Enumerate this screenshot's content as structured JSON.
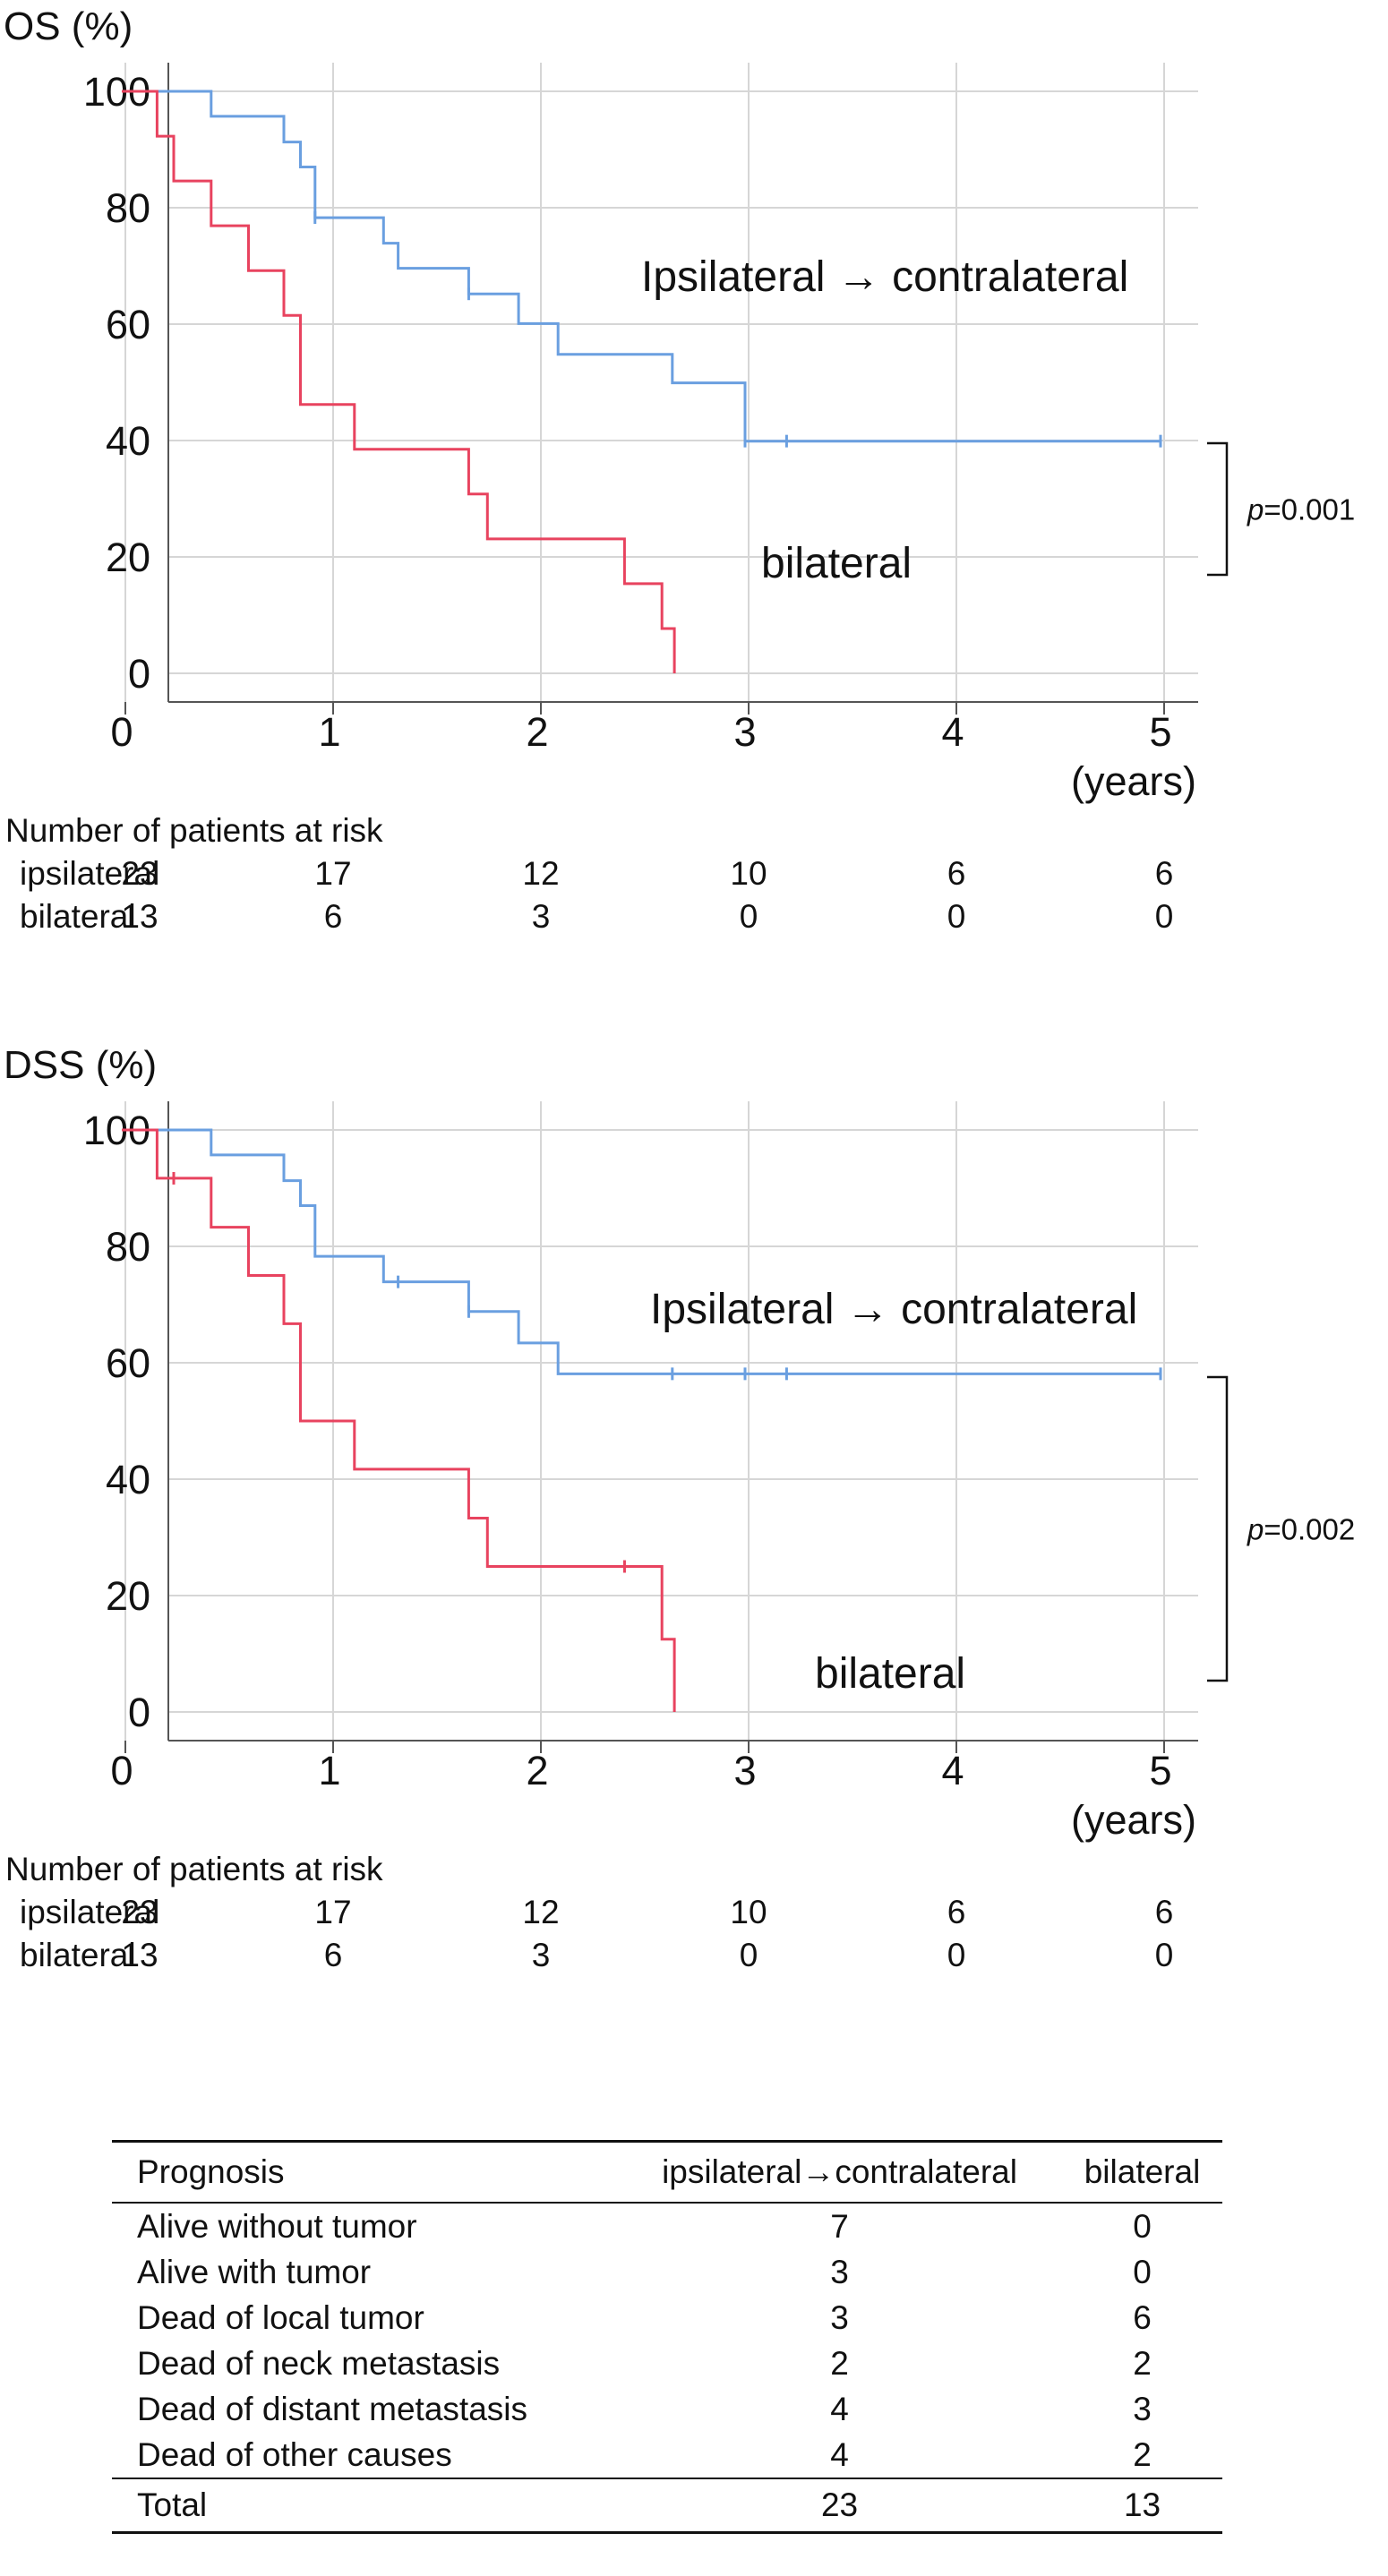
{
  "chart_data": [
    {
      "type": "line",
      "subtype": "kaplan-meier",
      "id": "os",
      "ylabel": "OS (%)",
      "xlabel": "(years)",
      "xlim": [
        0,
        5
      ],
      "ylim": [
        0,
        100
      ],
      "xticks": [
        "0",
        "1",
        "2",
        "3",
        "4",
        "5"
      ],
      "yticks": [
        "0",
        "20",
        "40",
        "60",
        "80",
        "100"
      ],
      "grid": true,
      "series": [
        {
          "name": "Ipsilateral → contralateral",
          "color": "#6a9fe0",
          "steps": [
            [
              0,
              100
            ],
            [
              0.43,
              95.7
            ],
            [
              0.78,
              91.3
            ],
            [
              0.86,
              87
            ],
            [
              0.93,
              78.3
            ],
            [
              1.26,
              73.9
            ],
            [
              1.33,
              69.6
            ],
            [
              1.67,
              65.2
            ],
            [
              1.91,
              60.1
            ],
            [
              2.1,
              54.8
            ],
            [
              2.65,
              49.9
            ],
            [
              3.0,
              39.9
            ],
            [
              5.0,
              39.9
            ]
          ],
          "censored": [
            [
              0.93,
              78.3
            ],
            [
              1.67,
              65.2
            ],
            [
              3.0,
              39.9
            ],
            [
              3.2,
              39.9
            ],
            [
              5.0,
              39.9
            ]
          ]
        },
        {
          "name": "bilateral",
          "color": "#e8435f",
          "steps": [
            [
              0,
              100
            ],
            [
              0.17,
              92.3
            ],
            [
              0.25,
              84.6
            ],
            [
              0.43,
              76.9
            ],
            [
              0.61,
              69.2
            ],
            [
              0.78,
              61.5
            ],
            [
              0.86,
              46.2
            ],
            [
              1.12,
              38.5
            ],
            [
              1.67,
              30.8
            ],
            [
              1.76,
              23.1
            ],
            [
              2.42,
              15.4
            ],
            [
              2.6,
              7.7
            ],
            [
              2.66,
              0
            ]
          ],
          "censored": []
        }
      ],
      "p_value": "p=0.001",
      "risk_table": {
        "header": "Number  of  patients at risk",
        "rows": [
          {
            "label": "ipsilateral",
            "values": [
              "23",
              "17",
              "12",
              "10",
              "6",
              "6"
            ]
          },
          {
            "label": "bilateral",
            "values": [
              "13",
              "6",
              "3",
              "0",
              "0",
              "0"
            ]
          }
        ]
      }
    },
    {
      "type": "line",
      "subtype": "kaplan-meier",
      "id": "dss",
      "ylabel": "DSS (%)",
      "xlabel": "(years)",
      "xlim": [
        0,
        5
      ],
      "ylim": [
        0,
        100
      ],
      "xticks": [
        "0",
        "1",
        "2",
        "3",
        "4",
        "5"
      ],
      "yticks": [
        "0",
        "20",
        "40",
        "60",
        "80",
        "100"
      ],
      "grid": true,
      "series": [
        {
          "name": "Ipsilateral → contralateral",
          "color": "#6a9fe0",
          "steps": [
            [
              0,
              100
            ],
            [
              0.43,
              95.7
            ],
            [
              0.78,
              91.3
            ],
            [
              0.86,
              87
            ],
            [
              0.93,
              78.3
            ],
            [
              1.26,
              73.9
            ],
            [
              1.67,
              68.8
            ],
            [
              1.91,
              63.4
            ],
            [
              2.1,
              58.1
            ],
            [
              5.0,
              58.1
            ]
          ],
          "censored": [
            [
              1.33,
              73.9
            ],
            [
              1.67,
              68.8
            ],
            [
              2.65,
              58.1
            ],
            [
              3.0,
              58.1
            ],
            [
              3.2,
              58.1
            ],
            [
              5.0,
              58.1
            ]
          ]
        },
        {
          "name": "bilateral",
          "color": "#e8435f",
          "steps": [
            [
              0,
              100
            ],
            [
              0.17,
              91.7
            ],
            [
              0.43,
              83.3
            ],
            [
              0.61,
              75
            ],
            [
              0.78,
              66.7
            ],
            [
              0.86,
              50
            ],
            [
              1.12,
              41.7
            ],
            [
              1.67,
              33.3
            ],
            [
              1.76,
              25
            ],
            [
              2.6,
              12.5
            ],
            [
              2.66,
              0
            ]
          ],
          "censored": [
            [
              0.25,
              91.7
            ],
            [
              2.42,
              25
            ]
          ]
        }
      ],
      "p_value": "p=0.002",
      "risk_table": {
        "header": "Number  of  patients at risk",
        "rows": [
          {
            "label": "ipsilateral",
            "values": [
              "23",
              "17",
              "12",
              "10",
              "6",
              "6"
            ]
          },
          {
            "label": "bilateral",
            "values": [
              "13",
              "6",
              "3",
              "0",
              "0",
              "0"
            ]
          }
        ]
      }
    },
    {
      "type": "table",
      "id": "prognosis",
      "columns": [
        "Prognosis",
        "ipsilateral→contralateral",
        "bilateral"
      ],
      "rows": [
        [
          "Alive without tumor",
          "7",
          "0"
        ],
        [
          "Alive with tumor",
          "3",
          "0"
        ],
        [
          "Dead of local tumor",
          "3",
          "6"
        ],
        [
          "Dead of neck metastasis",
          "2",
          "2"
        ],
        [
          "Dead of distant metastasis",
          "4",
          "3"
        ],
        [
          "Dead of other causes",
          "4",
          "2"
        ]
      ],
      "total": [
        "Total",
        "23",
        "13"
      ]
    }
  ]
}
